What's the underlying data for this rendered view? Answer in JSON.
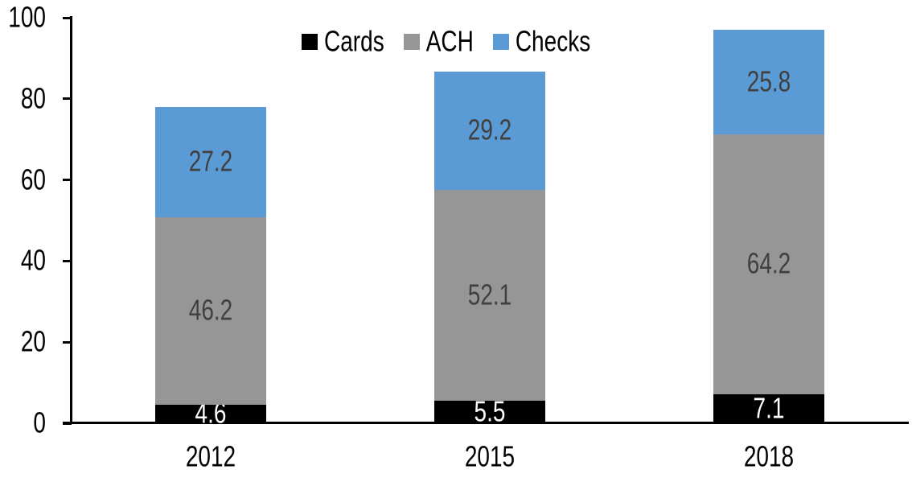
{
  "chart_data": {
    "type": "bar",
    "stacked": true,
    "title": "",
    "xlabel": "",
    "ylabel": "",
    "categories": [
      "2012",
      "2015",
      "2018"
    ],
    "series": [
      {
        "name": "Cards",
        "values": [
          4.6,
          5.5,
          7.1
        ],
        "color": "#000000",
        "label_color": "#ffffff"
      },
      {
        "name": "ACH",
        "values": [
          46.2,
          52.1,
          64.2
        ],
        "color": "#969696",
        "label_color": "#404040"
      },
      {
        "name": "Checks",
        "values": [
          27.2,
          29.2,
          25.8
        ],
        "color": "#5B9BD5",
        "label_color": "#404040"
      }
    ],
    "totals": [
      78.0,
      86.8,
      97.1
    ],
    "ylim": [
      0,
      100
    ],
    "yticks": [
      0,
      20,
      40,
      60,
      80,
      100
    ],
    "grid": false,
    "legend_position": "top-center",
    "legend_labels": [
      "Cards",
      "ACH",
      "Checks"
    ],
    "data_labels": "center",
    "axis_color": "#000000",
    "background": "#ffffff"
  }
}
